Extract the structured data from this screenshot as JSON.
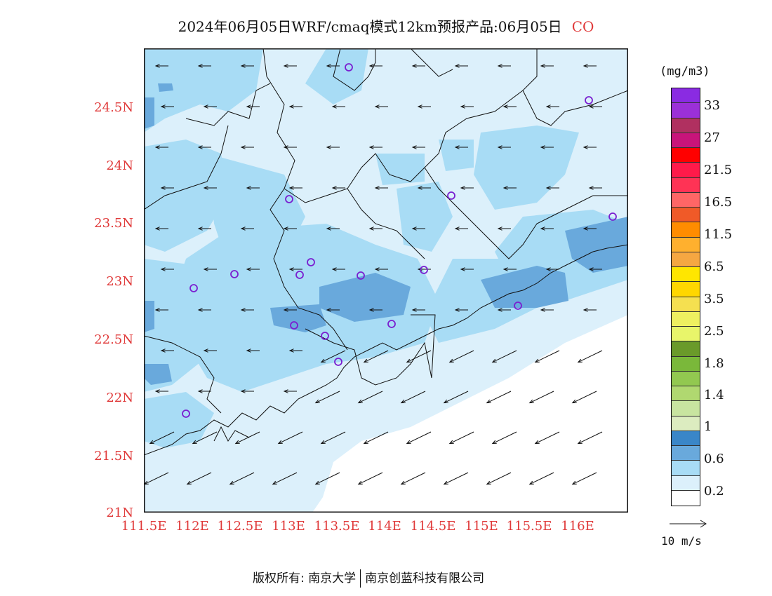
{
  "title": {
    "main": "2024年06月05日WRF/cmaq模式12km预报产品:06月05日",
    "species": "CO"
  },
  "map": {
    "lat_labels": [
      "24.5N",
      "24N",
      "23.5N",
      "23N",
      "22.5N",
      "22N",
      "21.5N",
      "21N"
    ],
    "lon_labels": [
      "111.5E",
      "112E",
      "112.5E",
      "113E",
      "113.5E",
      "114E",
      "114.5E",
      "115E",
      "115.5E",
      "116E"
    ],
    "stations_count": 17
  },
  "legend": {
    "unit": "(mg/m3)",
    "labels": [
      "33",
      "27",
      "21.5",
      "16.5",
      "11.5",
      "6.5",
      "3.5",
      "2.5",
      "1.8",
      "1.4",
      "1",
      "0.6",
      "0.2"
    ],
    "colors": [
      "#8a2be2",
      "#9b30d8",
      "#b03060",
      "#c8147a",
      "#ff0000",
      "#ff1a4a",
      "#ff3355",
      "#ff6666",
      "#f05a28",
      "#ff8c00",
      "#ffb02e",
      "#f5a742",
      "#ffe600",
      "#ffd700",
      "#f5e050",
      "#eef060",
      "#e8f56a",
      "#6a9a2a",
      "#7ab83a",
      "#92c850",
      "#b0d870",
      "#c8e4a0",
      "#dcecc0",
      "#3a86c8",
      "#69a9dc",
      "#a8dcf5",
      "#dcf0fb",
      "#ffffff"
    ]
  },
  "vector_scale": {
    "label": "10  m/s"
  },
  "footer": {
    "left": "版权所有: 南京大学",
    "right": "南京创蓝科技有限公司"
  }
}
